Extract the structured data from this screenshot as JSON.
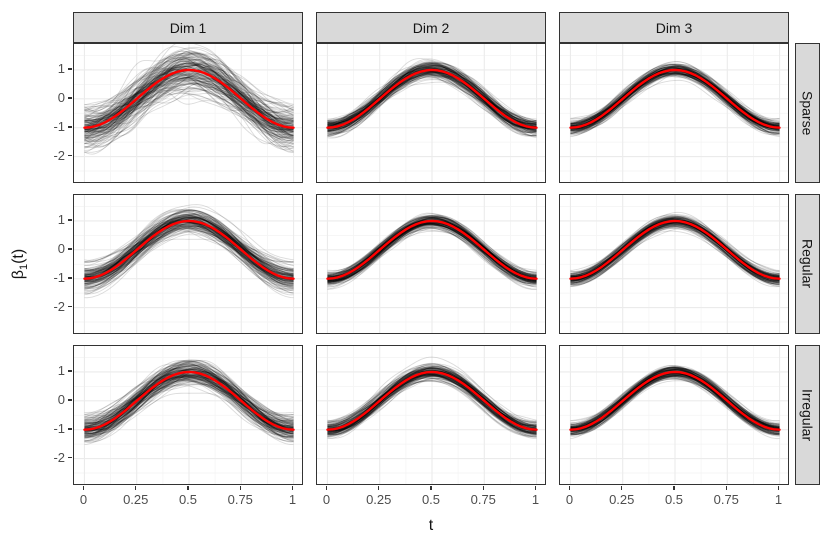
{
  "chart_data": {
    "type": "line",
    "description": "Faceted spaghetti plot of estimated coefficient curves: many semi-transparent black sample curves per panel with a red mean curve beta_1(t) = -cos(2*pi*t).",
    "facets": {
      "columns": [
        "Dim 1",
        "Dim 2",
        "Dim 3"
      ],
      "rows": [
        "Sparse",
        "Regular",
        "Irregular"
      ]
    },
    "x": {
      "label": "t",
      "range": [
        0,
        1
      ],
      "expanded_range": [
        -0.05,
        1.05
      ],
      "ticks": [
        0,
        0.25,
        0.5,
        0.75,
        1
      ],
      "tick_labels": [
        "0",
        "0.25",
        "0.5",
        "0.75",
        "1"
      ],
      "minor_ticks": [
        0.125,
        0.375,
        0.625,
        0.875
      ]
    },
    "y": {
      "title_parts": {
        "base": "β",
        "sub": "1",
        "rest": "(t)"
      },
      "range": [
        -2.95,
        1.9
      ],
      "ticks": [
        1,
        0,
        -1,
        -2
      ],
      "tick_labels": [
        "1",
        "0",
        "-1",
        "-2"
      ],
      "minor_ticks": [
        1.5,
        0.5,
        -0.5,
        -1.5,
        -2.5
      ]
    },
    "mean_curve": {
      "color": "#FF0000",
      "line_width": 2.4,
      "x_start": 0,
      "x_end": 1,
      "y": [
        -1,
        -0.988,
        -0.951,
        -0.891,
        -0.809,
        -0.707,
        -0.588,
        -0.454,
        -0.309,
        -0.156,
        0,
        0.156,
        0.309,
        0.454,
        0.588,
        0.707,
        0.809,
        0.891,
        0.951,
        0.988,
        1,
        0.988,
        0.951,
        0.891,
        0.809,
        0.707,
        0.588,
        0.454,
        0.309,
        0.156,
        0,
        -0.156,
        -0.309,
        -0.454,
        -0.588,
        -0.707,
        -0.809,
        -0.891,
        -0.951,
        -0.988,
        -1
      ]
    },
    "sample_curves": {
      "color": "#000000",
      "alpha": 0.14,
      "line_width": 0.9
    },
    "panels": [
      {
        "row": "Sparse",
        "col": "Dim 1",
        "n_curves": 160,
        "amp_sd": 0.22,
        "offset_sd": 0.3,
        "noise_sd": 0.15,
        "phase_sd": 0.015,
        "seed": 11
      },
      {
        "row": "Sparse",
        "col": "Dim 2",
        "n_curves": 150,
        "amp_sd": 0.08,
        "offset_sd": 0.11,
        "noise_sd": 0.07,
        "phase_sd": 0.012,
        "seed": 22
      },
      {
        "row": "Sparse",
        "col": "Dim 3",
        "n_curves": 150,
        "amp_sd": 0.06,
        "offset_sd": 0.09,
        "noise_sd": 0.055,
        "phase_sd": 0.01,
        "seed": 33
      },
      {
        "row": "Regular",
        "col": "Dim 1",
        "n_curves": 150,
        "amp_sd": 0.15,
        "offset_sd": 0.18,
        "noise_sd": 0.06,
        "phase_sd": 0.012,
        "seed": 44
      },
      {
        "row": "Regular",
        "col": "Dim 2",
        "n_curves": 150,
        "amp_sd": 0.07,
        "offset_sd": 0.1,
        "noise_sd": 0.035,
        "phase_sd": 0.01,
        "seed": 55
      },
      {
        "row": "Regular",
        "col": "Dim 3",
        "n_curves": 150,
        "amp_sd": 0.06,
        "offset_sd": 0.09,
        "noise_sd": 0.03,
        "phase_sd": 0.01,
        "seed": 66
      },
      {
        "row": "Irregular",
        "col": "Dim 1",
        "n_curves": 150,
        "amp_sd": 0.15,
        "offset_sd": 0.18,
        "noise_sd": 0.08,
        "phase_sd": 0.012,
        "seed": 77
      },
      {
        "row": "Irregular",
        "col": "Dim 2",
        "n_curves": 150,
        "amp_sd": 0.07,
        "offset_sd": 0.1,
        "noise_sd": 0.045,
        "phase_sd": 0.01,
        "seed": 88
      },
      {
        "row": "Irregular",
        "col": "Dim 3",
        "n_curves": 150,
        "amp_sd": 0.06,
        "offset_sd": 0.09,
        "noise_sd": 0.04,
        "phase_sd": 0.01,
        "seed": 99
      }
    ],
    "colors": {
      "strip_background": "#D9D9D9",
      "strip_border": "#333333",
      "panel_border": "#333333",
      "panel_background": "#FFFFFF",
      "grid_major": "#EBEBEB",
      "grid_minor": "#F5F5F5",
      "tick_mark": "#333333",
      "tick_text": "#4D4D4D",
      "text": "#141414",
      "mean_line": "#FF0000",
      "sample_line": "#000000"
    },
    "legend": {
      "visible": false
    }
  }
}
